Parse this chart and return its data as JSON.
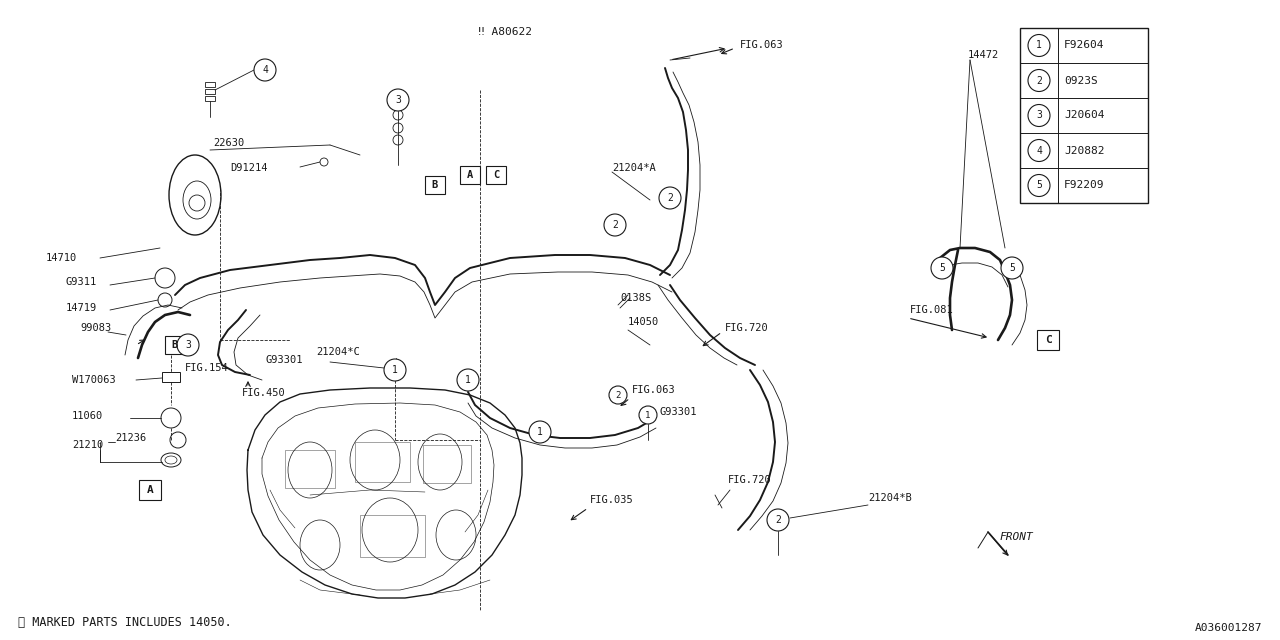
{
  "bg_color": "#ffffff",
  "line_color": "#1a1a1a",
  "fig_width": 12.8,
  "fig_height": 6.4,
  "legend_entries": [
    {
      "num": "1",
      "code": "F92604"
    },
    {
      "num": "2",
      "code": "0923S"
    },
    {
      "num": "3",
      "code": "J20604"
    },
    {
      "num": "4",
      "code": "J20882"
    },
    {
      "num": "5",
      "code": "F92209"
    }
  ],
  "footnote": "※ MARKED PARTS INCLUDES 14050.",
  "bottom_right_label": "A036001287",
  "star_label": "‼ A80622"
}
